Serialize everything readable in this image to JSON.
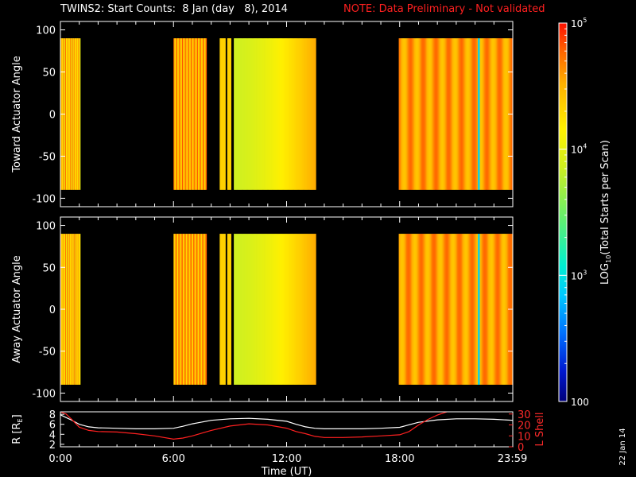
{
  "header": {
    "title": "TWINS2: Start Counts:  8 Jan (day   8), 2014",
    "note": "NOTE: Data Preliminary - Not validated",
    "note_color": "#ff2020"
  },
  "date_stamp": "22 Jan 14",
  "chart_data": [
    {
      "type": "heatmap",
      "name": "Toward",
      "ylabel": "Toward Actuator Angle",
      "ylim": [
        -110,
        110
      ],
      "yticks": [
        "100",
        "50",
        "0",
        "-50",
        "-100"
      ],
      "data_angle_range": [
        -90,
        90
      ],
      "xlim_hours": [
        0,
        24
      ],
      "data_blocks_hours": [
        [
          0.0,
          1.05
        ],
        [
          6.0,
          7.75
        ],
        [
          8.45,
          8.75
        ],
        [
          8.85,
          9.05
        ],
        [
          9.2,
          13.55
        ],
        [
          17.95,
          23.99
        ]
      ],
      "value_scale": "log10",
      "value_range": [
        100,
        100000
      ]
    },
    {
      "type": "heatmap",
      "name": "Away",
      "ylabel": "Away Actuator Angle",
      "ylim": [
        -110,
        110
      ],
      "yticks": [
        "100",
        "50",
        "0",
        "-50",
        "-100"
      ],
      "data_angle_range": [
        -90,
        90
      ],
      "xlim_hours": [
        0,
        24
      ],
      "data_blocks_hours": [
        [
          0.0,
          1.05
        ],
        [
          6.0,
          7.75
        ],
        [
          8.45,
          8.75
        ],
        [
          8.85,
          9.05
        ],
        [
          9.2,
          13.55
        ],
        [
          17.95,
          23.99
        ]
      ],
      "value_scale": "log10",
      "value_range": [
        100,
        100000
      ]
    },
    {
      "type": "line",
      "ylabel_left": "R [R",
      "ylabel_left_sub": "E",
      "ylabel_right": "L Shell",
      "yticks_left": [
        "8",
        "6",
        "4",
        "2"
      ],
      "yticks_right": [
        "30",
        "20",
        "10",
        "0"
      ],
      "ylim_left": [
        1.5,
        8.5
      ],
      "ylim_right": [
        0,
        32
      ],
      "xlabel": "Time (UT)",
      "xticks": [
        "0:00",
        "6:00",
        "12:00",
        "18:00",
        "23:59"
      ],
      "xtick_hours": [
        0,
        6,
        12,
        18,
        23.98
      ],
      "series": [
        {
          "axis": "left",
          "color": "#ffffff",
          "x": [
            0,
            0.5,
            1,
            1.5,
            2,
            3,
            4,
            5,
            6,
            6.5,
            7,
            8,
            9,
            10,
            11,
            12,
            12.5,
            13,
            13.5,
            14,
            15,
            16,
            17,
            18,
            18.5,
            19,
            20,
            21,
            22,
            23,
            24
          ],
          "y": [
            7.9,
            7.0,
            6.0,
            5.5,
            5.3,
            5.2,
            5.1,
            5.1,
            5.2,
            5.6,
            6.1,
            6.8,
            7.1,
            7.2,
            7.0,
            6.6,
            6.0,
            5.5,
            5.2,
            5.1,
            5.1,
            5.1,
            5.2,
            5.4,
            5.9,
            6.4,
            6.9,
            7.1,
            7.1,
            7.0,
            6.8
          ]
        },
        {
          "axis": "right",
          "color": "#ff2020",
          "x": [
            0,
            0.3,
            0.6,
            1,
            1.5,
            2,
            3,
            4,
            5,
            6,
            6.5,
            7,
            8,
            9,
            10,
            11,
            12,
            12.5,
            13,
            13.5,
            14,
            15,
            16,
            17,
            18,
            18.5,
            19,
            19.5,
            20,
            20.5
          ],
          "y": [
            32,
            30,
            25,
            18,
            15,
            14,
            13.5,
            12,
            10,
            7,
            8,
            10,
            15,
            19,
            21,
            20,
            17,
            14,
            12,
            9.5,
            8.5,
            8.5,
            9,
            10,
            11,
            14,
            20,
            25,
            29,
            32
          ]
        }
      ]
    }
  ],
  "colorbar": {
    "label_prefix": "LOG",
    "label_sub": "10",
    "label_rest": "(Total Starts per Scan)",
    "ticks": [
      {
        "value": 100000,
        "base": "10",
        "exp": "5"
      },
      {
        "value": 10000,
        "base": "10",
        "exp": "4"
      },
      {
        "value": 1000,
        "base": "10",
        "exp": "3"
      },
      {
        "value": 100,
        "base": "100",
        "exp": ""
      }
    ],
    "range": [
      100,
      100000
    ]
  }
}
